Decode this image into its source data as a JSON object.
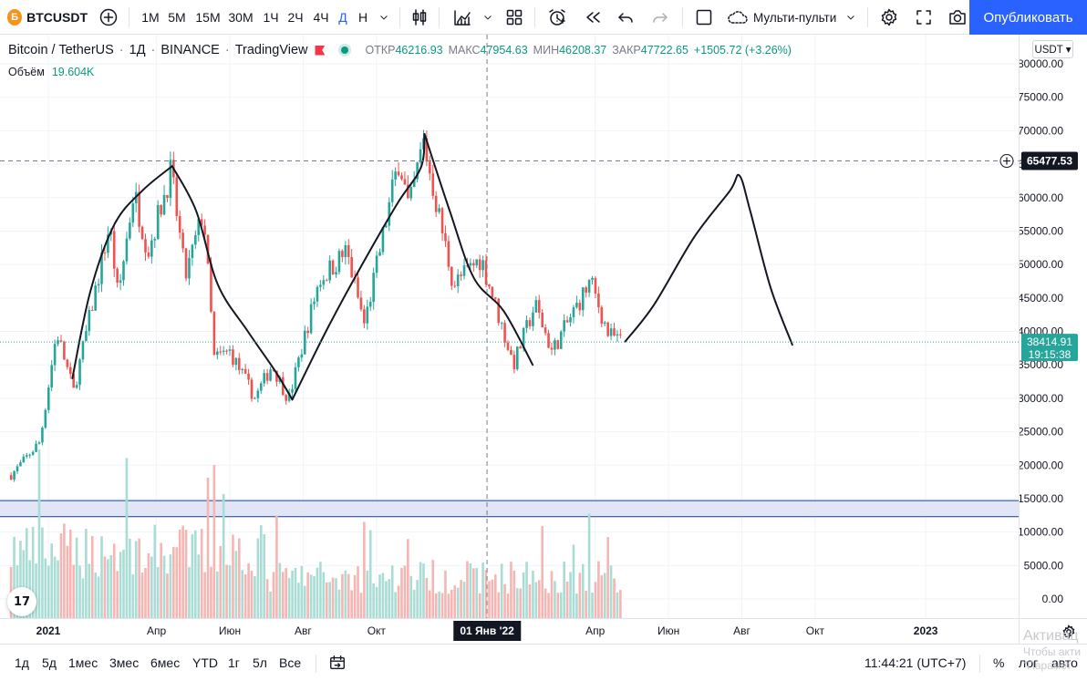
{
  "toolbar": {
    "symbol_icon": "Б",
    "symbol": "BTCUSDT",
    "add_symbol_icon": "plus-circle-icon",
    "intervals": [
      {
        "label": "1M"
      },
      {
        "label": "5M"
      },
      {
        "label": "15M"
      },
      {
        "label": "30M"
      },
      {
        "label": "1Ч"
      },
      {
        "label": "2Ч"
      },
      {
        "label": "4Ч"
      },
      {
        "label": "Д",
        "active": true
      },
      {
        "label": "Н"
      }
    ],
    "interval_dropdown_icon": "chevron-down-icon",
    "chart_type_icon": "candles-icon",
    "indicators_icon": "indicators-icon",
    "templates_icon": "grid-icon",
    "alert_icon": "alarm-icon",
    "replay_icon": "rewind-icon",
    "undo_icon": "undo-icon",
    "redo_icon": "redo-icon",
    "layout_icon": "square-icon",
    "multi_label": "Мульти-пульти",
    "multi_icon": "cloud-icon",
    "settings_icon": "gear-icon",
    "fullscreen_icon": "fullscreen-icon",
    "snapshot_icon": "camera-icon",
    "publish_label": "Опубликовать"
  },
  "legend": {
    "pair": "Bitcoin / TetherUS",
    "interval": "1Д",
    "exchange": "BINANCE",
    "source": "TradingView",
    "separator": "·",
    "ohlc": [
      {
        "k": "ОТКР",
        "v": "46216.93"
      },
      {
        "k": "МАКС",
        "v": "47954.63"
      },
      {
        "k": "МИН",
        "v": "46208.37"
      },
      {
        "k": "ЗАКР",
        "v": "47722.65"
      },
      {
        "k": "",
        "v": "+1505.72 (+3.26%)"
      }
    ],
    "volume_label": "Объём",
    "volume_value": "19.604K"
  },
  "currency": "USDT ▾",
  "logo_text": "17",
  "colors": {
    "up": "#26a69a",
    "down": "#ef5350",
    "vol_up": "#a9dcd5",
    "vol_down": "#f5b5b2",
    "accent": "#2962ff",
    "zone_fill": "#e1e6f7",
    "zone_line": "#1e3a8a",
    "line": "#131722"
  },
  "chart_data": {
    "type": "candlestick",
    "title": "Bitcoin / TetherUS · 1Д · BINANCE",
    "symbol": "BTCUSDT",
    "ylim": [
      -2000,
      82000
    ],
    "y_ticks": [
      "80000.00",
      "75000.00",
      "70000.00",
      "65000.00",
      "60000.00",
      "55000.00",
      "50000.00",
      "45000.00",
      "40000.00",
      "35000.00",
      "30000.00",
      "25000.00",
      "20000.00",
      "15000.00",
      "10000.00",
      "5000.00",
      "0.00"
    ],
    "x_ticks": [
      {
        "date": "2021-01-01",
        "label": "2021",
        "bold": true
      },
      {
        "date": "2021-04-01",
        "label": "Апр"
      },
      {
        "date": "2021-06-01",
        "label": "Июн"
      },
      {
        "date": "2021-08-01",
        "label": "Авг"
      },
      {
        "date": "2021-10-01",
        "label": "Окт"
      },
      {
        "date": "2022-04-01",
        "label": "Апр"
      },
      {
        "date": "2022-06-01",
        "label": "Июн"
      },
      {
        "date": "2022-08-01",
        "label": "Авг"
      },
      {
        "date": "2022-10-01",
        "label": "Окт"
      },
      {
        "date": "2023-01-01",
        "label": "2023",
        "bold": true
      }
    ],
    "crosshair": {
      "date": "2022-01-01",
      "label": "01 Янв '22",
      "price": 65477.53,
      "price_label": "65477.53"
    },
    "last_price": {
      "value": 38414.91,
      "label": "38414.91",
      "countdown": "19:15:38"
    },
    "support_zone": [
      12300,
      14700
    ],
    "price_path_keypoints": [
      {
        "date": "2020-12-01",
        "price": 18500
      },
      {
        "date": "2020-12-25",
        "price": 23500
      },
      {
        "date": "2021-01-08",
        "price": 40000
      },
      {
        "date": "2021-01-22",
        "price": 31000
      },
      {
        "date": "2021-02-21",
        "price": 56000
      },
      {
        "date": "2021-02-28",
        "price": 45000
      },
      {
        "date": "2021-03-13",
        "price": 61000
      },
      {
        "date": "2021-03-25",
        "price": 52000
      },
      {
        "date": "2021-04-13",
        "price": 64000
      },
      {
        "date": "2021-04-25",
        "price": 48000
      },
      {
        "date": "2021-05-10",
        "price": 58000
      },
      {
        "date": "2021-05-19",
        "price": 36000
      },
      {
        "date": "2021-06-01",
        "price": 37000
      },
      {
        "date": "2021-06-22",
        "price": 30000
      },
      {
        "date": "2021-07-06",
        "price": 35000
      },
      {
        "date": "2021-07-20",
        "price": 29800
      },
      {
        "date": "2021-08-14",
        "price": 47500
      },
      {
        "date": "2021-09-06",
        "price": 52000
      },
      {
        "date": "2021-09-21",
        "price": 41000
      },
      {
        "date": "2021-10-20",
        "price": 66000
      },
      {
        "date": "2021-10-28",
        "price": 58000
      },
      {
        "date": "2021-11-09",
        "price": 68500
      },
      {
        "date": "2021-12-04",
        "price": 47000
      },
      {
        "date": "2021-12-27",
        "price": 51000
      },
      {
        "date": "2022-01-23",
        "price": 35000
      },
      {
        "date": "2022-02-10",
        "price": 44000
      },
      {
        "date": "2022-02-24",
        "price": 37000
      },
      {
        "date": "2022-03-28",
        "price": 47500
      },
      {
        "date": "2022-04-12",
        "price": 39500
      },
      {
        "date": "2022-04-24",
        "price": 38400
      }
    ],
    "drawings": {
      "uptrend_1": [
        {
          "date": "2021-01-21",
          "price": 33000
        },
        {
          "date": "2021-02-05",
          "price": 46000
        },
        {
          "date": "2021-02-25",
          "price": 56000
        },
        {
          "date": "2021-03-20",
          "price": 61000
        },
        {
          "date": "2021-04-14",
          "price": 64700
        }
      ],
      "downtrend_1": [
        {
          "date": "2021-04-14",
          "price": 64700
        },
        {
          "date": "2021-05-04",
          "price": 58000
        },
        {
          "date": "2021-05-22",
          "price": 47000
        },
        {
          "date": "2021-06-16",
          "price": 40000
        },
        {
          "date": "2021-07-09",
          "price": 34000
        },
        {
          "date": "2021-07-23",
          "price": 29800
        }
      ],
      "uptrend_2": [
        {
          "date": "2021-07-23",
          "price": 29800
        },
        {
          "date": "2021-08-20",
          "price": 40000
        },
        {
          "date": "2021-09-16",
          "price": 49000
        },
        {
          "date": "2021-10-18",
          "price": 59000
        },
        {
          "date": "2021-11-07",
          "price": 64500
        },
        {
          "date": "2021-11-10",
          "price": 69500
        }
      ],
      "downtrend_2": [
        {
          "date": "2021-11-10",
          "price": 69500
        },
        {
          "date": "2021-12-01",
          "price": 58000
        },
        {
          "date": "2021-12-21",
          "price": 48000
        },
        {
          "date": "2022-01-15",
          "price": 43000
        },
        {
          "date": "2022-02-08",
          "price": 35000
        }
      ],
      "projection": [
        {
          "date": "2022-04-26",
          "price": 38500
        },
        {
          "date": "2022-05-20",
          "price": 44000
        },
        {
          "date": "2022-06-22",
          "price": 54000
        },
        {
          "date": "2022-07-22",
          "price": 61000
        },
        {
          "date": "2022-07-30",
          "price": 63300
        },
        {
          "date": "2022-08-08",
          "price": 58000
        },
        {
          "date": "2022-08-25",
          "price": 46500
        },
        {
          "date": "2022-09-12",
          "price": 38000
        }
      ]
    },
    "volume_ylim": [
      0,
      90000
    ]
  },
  "time_axis_settings_icon": "gear-icon",
  "bottom_bar": {
    "ranges": [
      "1д",
      "5д",
      "1мес",
      "3мес",
      "6мес",
      "YTD",
      "1г",
      "5л",
      "Все"
    ],
    "goto_icon": "calendar-goto-icon",
    "clock": "11:44:21 (UTC+7)",
    "percent": "%",
    "log": "лог",
    "auto": "авто"
  },
  "watermark": {
    "line1": "Активац",
    "line2": "Чтобы акти",
    "line3": "\"Парамет"
  }
}
